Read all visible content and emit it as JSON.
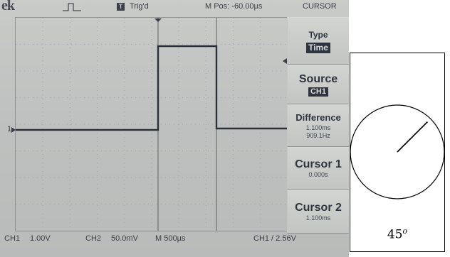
{
  "scope": {
    "brand": "ek",
    "trigger_badge": "T",
    "trigger_status": "Trig'd",
    "m_pos": "M Pos: -60.00µs",
    "menu_title": "CURSOR",
    "channel_marker": "1",
    "bottom": {
      "ch1": "CH1",
      "ch1_scale": "1.00V",
      "ch2": "CH2",
      "ch2_scale": "50.0mV",
      "timebase": "M 500µs",
      "trigger": "CH1 / 2.56V"
    },
    "menu": {
      "type_label": "Type",
      "type_value": "Time",
      "source_label": "Source",
      "source_value": "CH1",
      "difference_label": "Difference",
      "difference_time": "1.100ms",
      "difference_freq": "909.1Hz",
      "cursor1_label": "Cursor 1",
      "cursor1_value": "0.000s",
      "cursor2_label": "Cursor 2",
      "cursor2_value": "1.100ms"
    }
  },
  "dial": {
    "angle_value": "45",
    "angle_unit": "o",
    "angle_degrees": 45
  },
  "colors": {
    "trace": "#2c3038",
    "screen": "#c4c6c4"
  }
}
